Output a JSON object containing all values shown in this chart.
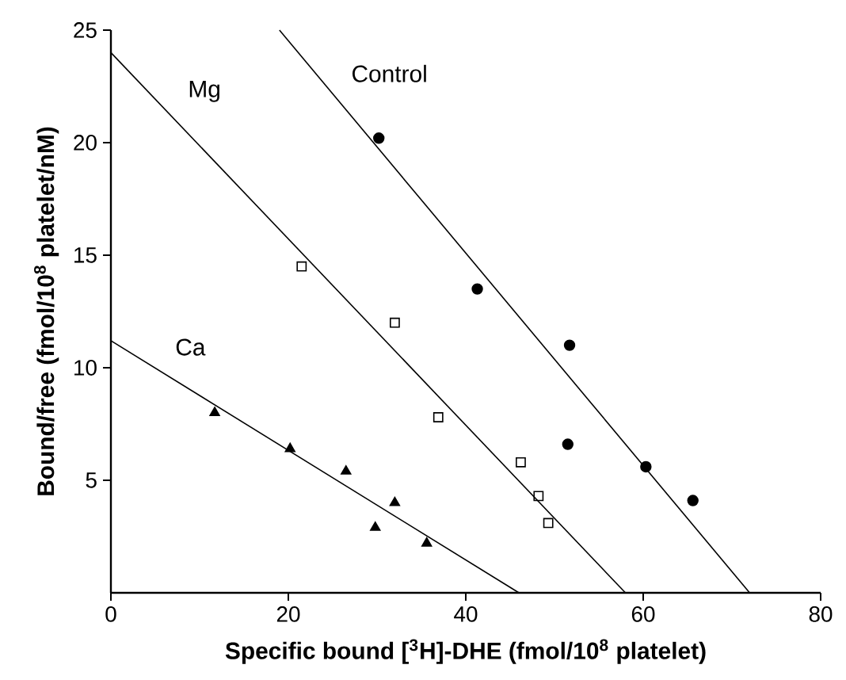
{
  "chart_data": {
    "type": "scatter",
    "xlabel": "Specific bound [$^{3}$H]-DHE (fmol/10$^{8}$ platelet)",
    "ylabel": "Bound/free (fmol/10$^{8}$ platelet/nM)",
    "xlim": [
      0,
      80
    ],
    "ylim": [
      0,
      25
    ],
    "xticks": [
      0,
      20,
      40,
      60,
      80
    ],
    "yticks": [
      5,
      10,
      15,
      20,
      25
    ],
    "series": [
      {
        "name": "Control",
        "type": "line",
        "color": "#000000",
        "x": [
          19,
          72
        ],
        "values": [
          25,
          0
        ]
      },
      {
        "marker": "circle",
        "color": "#000000",
        "x": [
          30.2,
          41.3,
          51.7,
          51.5,
          60.3,
          65.6
        ],
        "values": [
          20.2,
          13.5,
          11.0,
          6.6,
          5.6,
          4.1
        ]
      },
      {
        "name": "Mg",
        "type": "line",
        "color": "#000000",
        "x": [
          0,
          58
        ],
        "values": [
          24,
          0
        ]
      },
      {
        "marker": "square",
        "color": "#000000",
        "x": [
          21.5,
          32.0,
          36.9,
          46.2,
          48.2,
          49.3
        ],
        "values": [
          14.5,
          12.0,
          7.8,
          5.8,
          4.3,
          3.1
        ]
      },
      {
        "name": "Ca",
        "type": "line",
        "color": "#000000",
        "x": [
          0,
          46
        ],
        "values": [
          11.2,
          0
        ]
      },
      {
        "marker": "triangle",
        "color": "#000000",
        "x": [
          11.7,
          20.2,
          26.5,
          32.0,
          29.8,
          35.6
        ],
        "values": [
          8.0,
          6.4,
          5.4,
          4.0,
          2.9,
          2.2
        ]
      }
    ]
  }
}
